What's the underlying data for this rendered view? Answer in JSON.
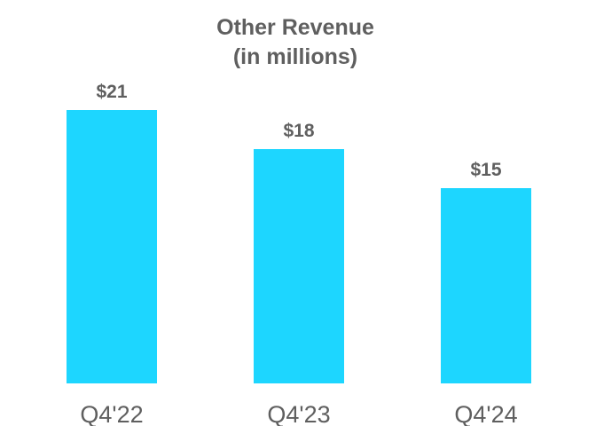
{
  "chart_data": {
    "type": "bar",
    "title": "Other Revenue",
    "subtitle": "(in millions)",
    "categories": [
      "Q4'22",
      "Q4'23",
      "Q4'24"
    ],
    "values": [
      21,
      18,
      15
    ],
    "data_labels": [
      "$21",
      "$18",
      "$15"
    ],
    "xlabel": "",
    "ylabel": "",
    "ylim": [
      0,
      21
    ],
    "grid": false,
    "legend": "none",
    "bar_color": "#1dd6ff",
    "text_color": "#5f5f5f"
  }
}
